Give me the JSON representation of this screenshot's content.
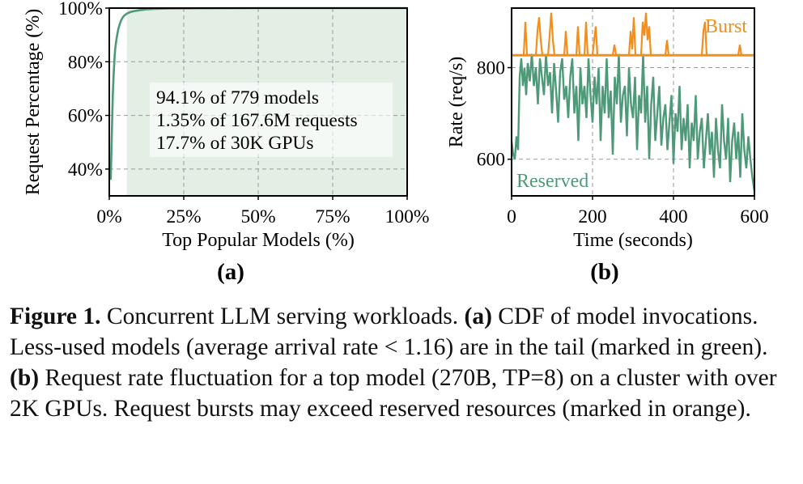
{
  "chart_data": [
    {
      "type": "line",
      "panel_label": "(a)",
      "xlabel": "Top Popular Models (%)",
      "ylabel": "Request Percentage (%)",
      "xlim": [
        0,
        100
      ],
      "ylim": [
        30,
        100
      ],
      "xticks": [
        0,
        25,
        50,
        75,
        100
      ],
      "xtick_labels": [
        "0%",
        "25%",
        "50%",
        "75%",
        "100%"
      ],
      "yticks": [
        40,
        60,
        80,
        100
      ],
      "ytick_labels": [
        "40%",
        "60%",
        "80%",
        "100%"
      ],
      "grid": true,
      "shaded_region": {
        "x_from": 5.9,
        "x_to": 100,
        "color": "#e3efe5"
      },
      "series": [
        {
          "name": "CDF",
          "color": "#4e9a78",
          "x": [
            0.5,
            0.8,
            1.0,
            1.2,
            1.5,
            1.8,
            2.0,
            2.5,
            3.0,
            3.5,
            4.0,
            4.5,
            5.0,
            6.0,
            7.0,
            8.0,
            10.0,
            12.0,
            15.0,
            20.0,
            30.0,
            50.0,
            100.0
          ],
          "y": [
            36,
            50,
            60,
            68,
            76,
            82,
            85,
            89,
            92,
            94,
            95.5,
            96.5,
            97.2,
            98.0,
            98.5,
            98.8,
            99.2,
            99.5,
            99.7,
            99.85,
            99.95,
            100,
            100
          ]
        }
      ],
      "annotations": [
        "94.1% of 779 models",
        "1.35% of 167.6M requests",
        "17.7% of 30K GPUs"
      ]
    },
    {
      "type": "line",
      "panel_label": "(b)",
      "xlabel": "Time (seconds)",
      "ylabel": "Rate (req/s)",
      "xlim": [
        0,
        600
      ],
      "ylim": [
        520,
        930
      ],
      "xticks": [
        0,
        200,
        400,
        600
      ],
      "xtick_labels": [
        "0",
        "200",
        "400",
        "600"
      ],
      "yticks": [
        600,
        800
      ],
      "ytick_labels": [
        "600",
        "800"
      ],
      "grid": true,
      "threshold": {
        "name": "Reserved capacity",
        "value": 827
      },
      "series": [
        {
          "name": "Reserved",
          "color": "#4e9a78",
          "x": [
            0,
            4,
            8,
            12,
            16,
            20,
            24,
            28,
            32,
            36,
            40,
            45,
            50,
            55,
            60,
            65,
            70,
            75,
            80,
            85,
            90,
            95,
            100,
            105,
            110,
            115,
            120,
            125,
            130,
            135,
            140,
            145,
            150,
            155,
            160,
            165,
            170,
            175,
            180,
            185,
            190,
            195,
            200,
            205,
            210,
            215,
            220,
            225,
            230,
            235,
            240,
            245,
            250,
            255,
            260,
            265,
            270,
            275,
            280,
            285,
            290,
            295,
            300,
            305,
            310,
            315,
            320,
            325,
            330,
            335,
            340,
            345,
            350,
            355,
            360,
            365,
            370,
            375,
            380,
            385,
            390,
            395,
            400,
            405,
            410,
            415,
            420,
            425,
            430,
            435,
            440,
            445,
            450,
            455,
            460,
            465,
            470,
            475,
            480,
            485,
            490,
            495,
            500,
            505,
            510,
            515,
            520,
            525,
            530,
            535,
            540,
            545,
            550,
            555,
            560,
            565,
            570,
            575,
            580,
            585,
            590,
            595,
            600
          ],
          "y": [
            640,
            610,
            600,
            650,
            620,
            780,
            820,
            760,
            800,
            740,
            810,
            770,
            830,
            760,
            800,
            720,
            820,
            780,
            740,
            830,
            760,
            790,
            700,
            810,
            750,
            680,
            790,
            820,
            730,
            760,
            690,
            780,
            820,
            700,
            760,
            640,
            800,
            720,
            760,
            690,
            820,
            740,
            680,
            780,
            720,
            800,
            640,
            760,
            700,
            820,
            690,
            750,
            610,
            780,
            720,
            830,
            680,
            740,
            760,
            650,
            800,
            720,
            690,
            780,
            620,
            740,
            700,
            830,
            680,
            760,
            600,
            720,
            780,
            640,
            700,
            760,
            630,
            690,
            720,
            620,
            680,
            740,
            590,
            700,
            660,
            760,
            620,
            690,
            640,
            720,
            580,
            680,
            640,
            740,
            600,
            660,
            690,
            580,
            640,
            700,
            610,
            660,
            560,
            690,
            620,
            580,
            720,
            640,
            600,
            690,
            550,
            640,
            680,
            600,
            660,
            560,
            700,
            620,
            580,
            650,
            600,
            560,
            530
          ]
        },
        {
          "name": "Burst",
          "color": "#f28e1c",
          "x": [
            30,
            34,
            38,
            60,
            64,
            68,
            72,
            76,
            90,
            94,
            98,
            102,
            106,
            130,
            134,
            138,
            160,
            164,
            168,
            180,
            184,
            188,
            200,
            204,
            208,
            212,
            250,
            254,
            258,
            290,
            294,
            298,
            302,
            306,
            320,
            324,
            328,
            332,
            336,
            340,
            344,
            380,
            384,
            388,
            470,
            474,
            478,
            482,
            560,
            564,
            568
          ],
          "y": [
            827,
            900,
            827,
            827,
            880,
            910,
            860,
            827,
            827,
            870,
            920,
            860,
            827,
            827,
            880,
            827,
            827,
            890,
            827,
            827,
            900,
            827,
            827,
            860,
            890,
            827,
            827,
            850,
            827,
            827,
            880,
            840,
            910,
            827,
            827,
            900,
            870,
            920,
            860,
            890,
            827,
            827,
            860,
            827,
            827,
            880,
            900,
            827,
            827,
            850,
            827
          ]
        }
      ],
      "legend_labels": {
        "burst": "Burst",
        "reserved": "Reserved"
      }
    }
  ],
  "caption": {
    "figure_label": "Figure 1.",
    "title_text": " Concurrent LLM serving workloads. ",
    "part_a_label": "(a)",
    "part_a_text": " CDF of model invocations. Less-used models (average arrival rate < 1.16) are in the tail (marked in green). ",
    "part_b_label": "(b)",
    "part_b_text": " Request rate fluctuation for a top model (270B, TP=8) on a cluster with over 2K GPUs. Request bursts may exceed reserved resources (marked in orange)."
  }
}
